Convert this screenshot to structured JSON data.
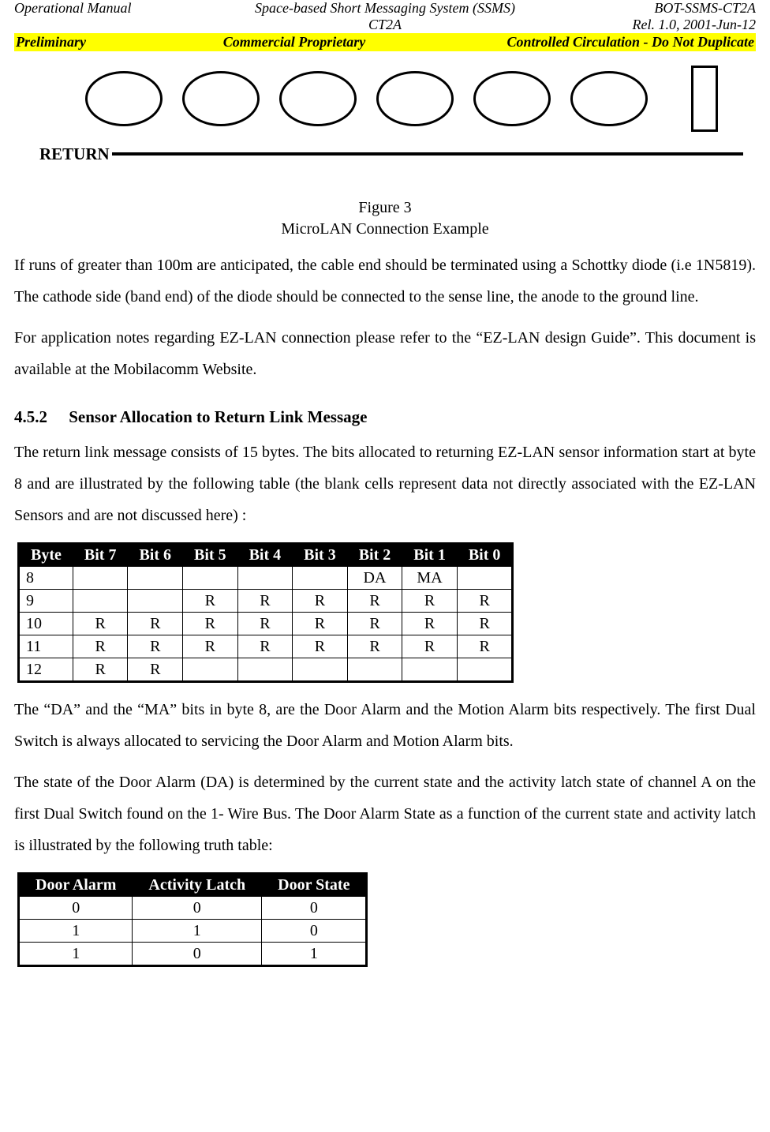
{
  "header": {
    "left1": "Operational Manual",
    "center1": "Space-based Short Messaging System (SSMS)",
    "right1": "BOT-SSMS-CT2A",
    "center2": "CT2A",
    "right2": "Rel. 1.0, 2001-Jun-12",
    "yellow_left": "Preliminary",
    "yellow_center": "Commercial Proprietary",
    "yellow_right": "Controlled Circulation - Do Not Duplicate"
  },
  "diagram": {
    "return_label": "RETURN",
    "ellipse_count": 6
  },
  "figure": {
    "line1": "Figure 3",
    "line2": "MicroLAN Connection Example"
  },
  "para1": "If runs of greater than 100m are anticipated, the cable end should be terminated using a Schottky diode (i.e  1N5819). The cathode side (band end) of the diode should be connected to the sense line, the anode to the ground line.",
  "para2": "For application notes regarding EZ-LAN connection please refer to the “EZ-LAN design Guide”. This document is available at the Mobilacomm Website.",
  "section": {
    "num": "4.5.2",
    "title": "Sensor Allocation to Return Link Message"
  },
  "para3": "The return link message consists of 15 bytes. The bits allocated to returning EZ-LAN sensor information start at byte 8 and are illustrated by the following table (the blank cells represent data not directly associated with the EZ-LAN Sensors and are not discussed here) :",
  "bit_table": {
    "columns": [
      "Byte",
      "Bit 7",
      "Bit 6",
      "Bit 5",
      "Bit 4",
      "Bit 3",
      "Bit 2",
      "Bit 1",
      "Bit 0"
    ],
    "rows": [
      [
        "8",
        "",
        "",
        "",
        "",
        "",
        "DA",
        "MA",
        ""
      ],
      [
        "9",
        "",
        "",
        "R",
        "R",
        "R",
        "R",
        "R",
        "R"
      ],
      [
        "10",
        "R",
        "R",
        "R",
        "R",
        "R",
        "R",
        "R",
        "R"
      ],
      [
        "11",
        "R",
        "R",
        "R",
        "R",
        "R",
        "R",
        "R",
        "R"
      ],
      [
        "12",
        "R",
        "R",
        "",
        "",
        "",
        "",
        "",
        ""
      ]
    ]
  },
  "para4": "The “DA” and the “MA” bits in byte 8, are the Door Alarm and the Motion Alarm bits respectively.  The first Dual Switch is always allocated to servicing the Door Alarm and Motion Alarm bits.",
  "para5": "The state of the Door Alarm (DA) is determined by the current state and the activity latch  state of channel A on the first Dual Switch found on the 1- Wire Bus.  The Door Alarm State as a function of the current state and activity latch is illustrated by the following truth table:",
  "truth_table": {
    "columns": [
      "Door Alarm",
      "Activity Latch",
      "Door State"
    ],
    "rows": [
      [
        "0",
        "0",
        "0"
      ],
      [
        "1",
        "1",
        "0"
      ],
      [
        "1",
        "0",
        "1"
      ]
    ]
  },
  "colors": {
    "highlight_bg": "#ffff00",
    "table_header_bg": "#000000",
    "table_header_fg": "#ffffff"
  }
}
